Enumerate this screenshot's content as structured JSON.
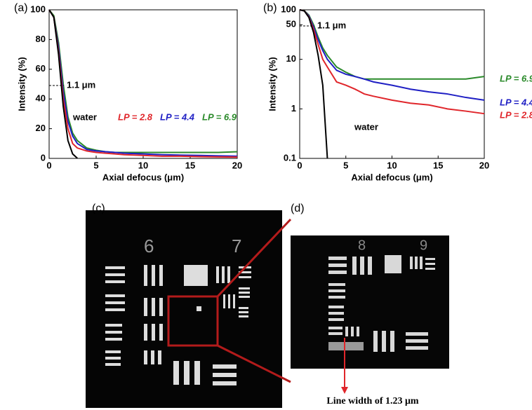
{
  "chart_data": [
    {
      "type": "line",
      "label": "(a)",
      "xlabel": "Axial defocus (μm)",
      "ylabel": "Intensity (%)",
      "annotation": "1.1 μm",
      "x": [
        0,
        0.5,
        1,
        1.5,
        2,
        2.5,
        3,
        4,
        5,
        6,
        7,
        8,
        10,
        12,
        14,
        16,
        18,
        20
      ],
      "xlim": [
        0,
        20
      ],
      "xticks": [
        0,
        5,
        10,
        15,
        20
      ],
      "ylim": [
        0,
        100
      ],
      "yticks": [
        0,
        20,
        40,
        60,
        80,
        100
      ],
      "log_y": false,
      "series": [
        {
          "name": "water",
          "color": "#000000",
          "values": [
            100,
            95,
            70,
            35,
            12,
            3,
            0.1,
            null,
            null,
            null,
            null,
            null,
            null,
            null,
            null,
            null,
            null,
            null
          ]
        },
        {
          "name": "LP = 2.8",
          "color": "#e0262b",
          "values": [
            100,
            95,
            72,
            40,
            20,
            10,
            7,
            5,
            4,
            3.5,
            3,
            2.5,
            2,
            1.5,
            1.5,
            1.2,
            1,
            0.9
          ]
        },
        {
          "name": "LP = 4.4",
          "color": "#1f1fc4",
          "values": [
            100,
            95,
            75,
            45,
            25,
            15,
            10,
            6,
            5,
            4.5,
            4,
            3.5,
            3,
            2.5,
            2.2,
            2,
            1.7,
            1.5
          ]
        },
        {
          "name": "LP = 6.9",
          "color": "#2a8a2a",
          "values": [
            100,
            96,
            78,
            50,
            28,
            17,
            12,
            7,
            5.5,
            4.5,
            4,
            4,
            4,
            4,
            4,
            4,
            4,
            4.5
          ]
        }
      ]
    },
    {
      "type": "line",
      "label": "(b)",
      "xlabel": "Axial defocus (μm)",
      "ylabel": "Intensity (%)",
      "annotation": "1.1 μm",
      "x": [
        0,
        0.5,
        1,
        1.5,
        2,
        2.5,
        3,
        4,
        5,
        6,
        7,
        8,
        10,
        12,
        14,
        16,
        18,
        20
      ],
      "xlim": [
        0,
        20
      ],
      "xticks": [
        0,
        5,
        10,
        15,
        20
      ],
      "ylim": [
        0.1,
        100
      ],
      "yticks": [
        0.1,
        1,
        10,
        50,
        100
      ],
      "log_y": true,
      "series": [
        {
          "name": "water",
          "color": "#000000",
          "values": [
            100,
            95,
            70,
            35,
            12,
            3,
            0.1,
            null,
            null,
            null,
            null,
            null,
            null,
            null,
            null,
            null,
            null,
            null
          ]
        },
        {
          "name": "LP = 2.8",
          "color": "#e0262b",
          "values": [
            100,
            95,
            72,
            40,
            20,
            10,
            7,
            3.5,
            3,
            2.5,
            2,
            1.8,
            1.5,
            1.3,
            1.2,
            1,
            0.9,
            0.8
          ]
        },
        {
          "name": "LP = 4.4",
          "color": "#1f1fc4",
          "values": [
            100,
            95,
            75,
            45,
            25,
            15,
            10,
            6,
            5,
            4.5,
            4,
            3.5,
            3,
            2.5,
            2.2,
            2,
            1.7,
            1.5
          ]
        },
        {
          "name": "LP = 6.9",
          "color": "#2a8a2a",
          "values": [
            100,
            96,
            78,
            50,
            28,
            17,
            12,
            7,
            5.5,
            4.5,
            4,
            4,
            4,
            4,
            4,
            4,
            4,
            4.5
          ]
        }
      ]
    }
  ],
  "images": {
    "c": {
      "label": "(c)",
      "group_labels": [
        "6",
        "7"
      ]
    },
    "d": {
      "label": "(d)",
      "group_labels": [
        "8",
        "9"
      ],
      "caption": "Line width of 1.23 μm"
    }
  }
}
